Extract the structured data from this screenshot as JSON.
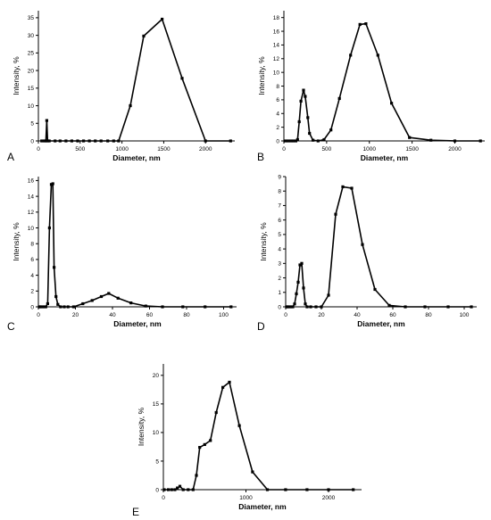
{
  "chart_data": [
    {
      "panel_label": "A",
      "type": "line",
      "xlabel": "Diameter, nm",
      "ylabel": "Intensity, %",
      "xlim": [
        0,
        2350
      ],
      "ylim": [
        0,
        37
      ],
      "xticks": [
        0,
        500,
        1000,
        1500,
        2000
      ],
      "yticks": [
        0,
        5,
        10,
        15,
        20,
        25,
        30,
        35
      ],
      "grid": false,
      "series": [
        {
          "x": [
            40,
            70,
            90,
            100,
            110,
            130,
            200,
            260,
            330,
            400,
            470,
            540,
            610,
            680,
            750,
            830,
            900,
            960,
            1100,
            1260,
            1480,
            1720,
            2000,
            2300
          ],
          "y": [
            0,
            0,
            0,
            5.8,
            0,
            0,
            0,
            0,
            0,
            0,
            0,
            0,
            0,
            0,
            0,
            0,
            0,
            0,
            10,
            29.8,
            34.6,
            17.8,
            0,
            0
          ]
        }
      ]
    },
    {
      "panel_label": "B",
      "type": "line",
      "xlabel": "Diameter, nm",
      "ylabel": "Intensity, %",
      "xlim": [
        0,
        2350
      ],
      "ylim": [
        0,
        19
      ],
      "xticks": [
        0,
        500,
        1000,
        1500,
        2000
      ],
      "yticks": [
        0,
        2,
        4,
        6,
        8,
        10,
        12,
        14,
        16,
        18
      ],
      "grid": false,
      "series": [
        {
          "x": [
            20,
            50,
            80,
            110,
            140,
            160,
            180,
            200,
            230,
            250,
            280,
            300,
            340,
            400,
            470,
            550,
            650,
            780,
            890,
            960,
            1100,
            1260,
            1470,
            1720,
            2000,
            2300
          ],
          "y": [
            0,
            0,
            0,
            0,
            0,
            0.2,
            2.8,
            5.8,
            7.4,
            6.5,
            3.4,
            1.1,
            0.1,
            0,
            0.2,
            1.6,
            6.2,
            12.5,
            17,
            17.1,
            12.5,
            5.5,
            0.5,
            0.1,
            0,
            0
          ]
        }
      ]
    },
    {
      "panel_label": "C",
      "type": "line",
      "xlabel": "Diameter, nm",
      "ylabel": "Intensity, %",
      "xlim": [
        0,
        107
      ],
      "ylim": [
        0,
        16.5
      ],
      "xticks": [
        0,
        20,
        40,
        60,
        80,
        100
      ],
      "yticks": [
        0,
        2,
        4,
        6,
        8,
        10,
        12,
        14,
        16
      ],
      "grid": false,
      "series": [
        {
          "x": [
            0.5,
            1,
            2,
            3,
            4,
            5,
            6,
            7,
            7.8,
            8.5,
            9.5,
            10.5,
            12,
            14,
            16,
            19,
            24,
            29,
            34,
            38,
            43,
            50,
            58,
            67,
            78,
            90,
            104
          ],
          "y": [
            0,
            0,
            0,
            0,
            0,
            0.4,
            10,
            15.5,
            15.6,
            5,
            1.3,
            0.3,
            0,
            0,
            0,
            0,
            0.4,
            0.8,
            1.3,
            1.7,
            1.1,
            0.5,
            0.1,
            0,
            0,
            0,
            0
          ]
        }
      ]
    },
    {
      "panel_label": "D",
      "type": "line",
      "xlabel": "Diameter, nm",
      "ylabel": "Intensity, %",
      "xlim": [
        0,
        107
      ],
      "ylim": [
        0,
        9
      ],
      "xticks": [
        0,
        20,
        40,
        60,
        80,
        100
      ],
      "yticks": [
        0,
        1,
        2,
        3,
        4,
        5,
        6,
        7,
        8,
        9
      ],
      "grid": false,
      "series": [
        {
          "x": [
            0.5,
            1,
            2,
            3,
            4,
            5,
            6,
            7,
            8,
            9,
            10,
            11,
            12,
            14,
            17,
            20,
            24,
            28,
            32,
            37,
            43,
            50,
            58,
            67,
            78,
            91,
            104
          ],
          "y": [
            0,
            0,
            0,
            0,
            0,
            0.2,
            0.9,
            1.7,
            2.9,
            3,
            1.3,
            0.2,
            0,
            0,
            0,
            0,
            0.8,
            6.4,
            8.3,
            8.2,
            4.3,
            1.2,
            0.1,
            0,
            0,
            0,
            0
          ]
        }
      ]
    },
    {
      "panel_label": "E",
      "type": "line",
      "xlabel": "Diameter, nm",
      "ylabel": "Intensity, %",
      "xlim": [
        0,
        2400
      ],
      "ylim": [
        0,
        22
      ],
      "xticks": [
        0,
        1000,
        2000
      ],
      "yticks": [
        0,
        5,
        10,
        15,
        20
      ],
      "grid": false,
      "series": [
        {
          "x": [
            10,
            60,
            100,
            140,
            170,
            200,
            240,
            300,
            360,
            400,
            440,
            500,
            570,
            640,
            720,
            800,
            920,
            1080,
            1260,
            1480,
            1740,
            2000,
            2300
          ],
          "y": [
            0,
            0,
            0,
            0,
            0.3,
            0.6,
            0,
            0,
            0,
            2.5,
            7.4,
            7.9,
            8.6,
            13.5,
            17.9,
            18.8,
            11.2,
            3.1,
            0,
            0,
            0,
            0,
            0
          ]
        }
      ]
    }
  ]
}
